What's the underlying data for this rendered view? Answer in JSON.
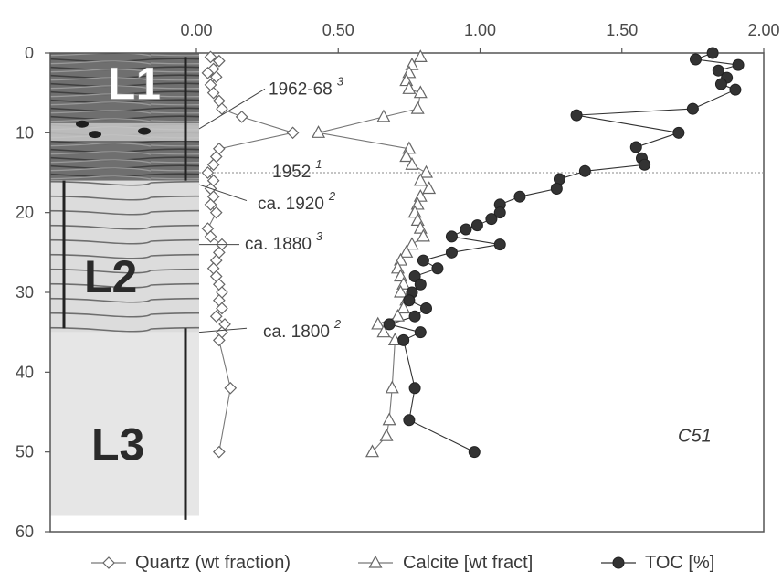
{
  "chart_data": {
    "type": "scatter",
    "x_ticks": [
      "0.00",
      "0.50",
      "1.00",
      "1.50",
      "2.00"
    ],
    "y_ticks": [
      "0",
      "10",
      "20",
      "30",
      "40",
      "50",
      "60"
    ],
    "xlim": [
      0,
      2.0
    ],
    "ylim": [
      0,
      60
    ],
    "y_inverted": true,
    "x_axis_position": "top",
    "series": [
      {
        "name": "Quartz (wt fraction)",
        "marker": "diamond-open",
        "color": "#666666",
        "points": [
          [
            0.05,
            0.5
          ],
          [
            0.08,
            1
          ],
          [
            0.06,
            2
          ],
          [
            0.04,
            2.5
          ],
          [
            0.07,
            3
          ],
          [
            0.05,
            4
          ],
          [
            0.06,
            5
          ],
          [
            0.08,
            6
          ],
          [
            0.09,
            7
          ],
          [
            0.16,
            8
          ],
          [
            0.34,
            10
          ],
          [
            0.08,
            12
          ],
          [
            0.07,
            13
          ],
          [
            0.06,
            14
          ],
          [
            0.04,
            15
          ],
          [
            0.06,
            16
          ],
          [
            0.05,
            17
          ],
          [
            0.06,
            18
          ],
          [
            0.05,
            19
          ],
          [
            0.07,
            20
          ],
          [
            0.04,
            22
          ],
          [
            0.05,
            23
          ],
          [
            0.09,
            24
          ],
          [
            0.08,
            25
          ],
          [
            0.07,
            26
          ],
          [
            0.06,
            27
          ],
          [
            0.07,
            28
          ],
          [
            0.08,
            29
          ],
          [
            0.09,
            30
          ],
          [
            0.08,
            31
          ],
          [
            0.09,
            32
          ],
          [
            0.07,
            33
          ],
          [
            0.1,
            34
          ],
          [
            0.09,
            35
          ],
          [
            0.08,
            36
          ],
          [
            0.12,
            42
          ],
          [
            0.08,
            50
          ]
        ]
      },
      {
        "name": "Calcite [wt fract]",
        "marker": "triangle-open",
        "color": "#666666",
        "points": [
          [
            0.79,
            0.5
          ],
          [
            0.76,
            1.5
          ],
          [
            0.75,
            2.5
          ],
          [
            0.74,
            3.5
          ],
          [
            0.75,
            4.5
          ],
          [
            0.79,
            5
          ],
          [
            0.78,
            7
          ],
          [
            0.66,
            8
          ],
          [
            0.43,
            10
          ],
          [
            0.75,
            12
          ],
          [
            0.74,
            13
          ],
          [
            0.76,
            14
          ],
          [
            0.81,
            15
          ],
          [
            0.79,
            16
          ],
          [
            0.82,
            17
          ],
          [
            0.79,
            18
          ],
          [
            0.78,
            19
          ],
          [
            0.77,
            20
          ],
          [
            0.78,
            21
          ],
          [
            0.79,
            22
          ],
          [
            0.8,
            23
          ],
          [
            0.76,
            24
          ],
          [
            0.74,
            25
          ],
          [
            0.72,
            26
          ],
          [
            0.71,
            27
          ],
          [
            0.72,
            28
          ],
          [
            0.73,
            29
          ],
          [
            0.72,
            30
          ],
          [
            0.74,
            31
          ],
          [
            0.73,
            32
          ],
          [
            0.71,
            33
          ],
          [
            0.64,
            34
          ],
          [
            0.66,
            35
          ],
          [
            0.7,
            36
          ],
          [
            0.69,
            42
          ],
          [
            0.68,
            46
          ],
          [
            0.67,
            48
          ],
          [
            0.62,
            50
          ]
        ]
      },
      {
        "name": "TOC [%]",
        "marker": "circle-filled",
        "color": "#333333",
        "points": [
          [
            1.82,
            0
          ],
          [
            1.76,
            0.8
          ],
          [
            1.91,
            1.5
          ],
          [
            1.84,
            2.2
          ],
          [
            1.87,
            3.1
          ],
          [
            1.85,
            3.9
          ],
          [
            1.9,
            4.6
          ],
          [
            1.75,
            7
          ],
          [
            1.34,
            7.8
          ],
          [
            1.7,
            10
          ],
          [
            1.55,
            11.8
          ],
          [
            1.57,
            13.2
          ],
          [
            1.58,
            14
          ],
          [
            1.37,
            14.8
          ],
          [
            1.28,
            15.8
          ],
          [
            1.27,
            17
          ],
          [
            1.14,
            18
          ],
          [
            1.07,
            19
          ],
          [
            1.07,
            20
          ],
          [
            1.04,
            20.8
          ],
          [
            0.99,
            21.6
          ],
          [
            0.95,
            22.1
          ],
          [
            0.9,
            23
          ],
          [
            1.07,
            24
          ],
          [
            0.9,
            25
          ],
          [
            0.8,
            26
          ],
          [
            0.85,
            27
          ],
          [
            0.77,
            28
          ],
          [
            0.79,
            29
          ],
          [
            0.76,
            30
          ],
          [
            0.75,
            31
          ],
          [
            0.81,
            32
          ],
          [
            0.77,
            33
          ],
          [
            0.68,
            34
          ],
          [
            0.79,
            35
          ],
          [
            0.73,
            36
          ],
          [
            0.77,
            42
          ],
          [
            0.75,
            46
          ],
          [
            0.98,
            50
          ]
        ]
      }
    ],
    "annotations": [
      {
        "label": "1962-68",
        "superscript": "3",
        "depth": 5
      },
      {
        "label": "1952",
        "superscript": "1",
        "depth": 15
      },
      {
        "label": "ca. 1920",
        "superscript": "2",
        "depth": 19
      },
      {
        "label": "ca. 1880",
        "superscript": "3",
        "depth": 24
      },
      {
        "label": "ca. 1800",
        "superscript": "2",
        "depth": 35
      }
    ],
    "units": [
      {
        "label": "L1",
        "top": 0,
        "bottom": 16
      },
      {
        "label": "L2",
        "top": 16,
        "bottom": 35
      },
      {
        "label": "L3",
        "top": 35,
        "bottom": 58
      }
    ],
    "core_id": "C51",
    "legend_position": "bottom",
    "grid": false
  }
}
